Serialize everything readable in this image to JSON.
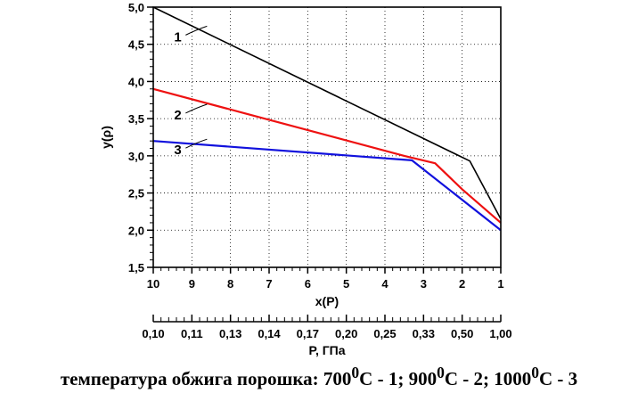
{
  "chart_data": {
    "type": "line",
    "ylabel": "y(ρ)",
    "ylim": [
      1.5,
      5.0
    ],
    "yticks": [
      1.5,
      2.0,
      2.5,
      3.0,
      3.5,
      4.0,
      4.5,
      5.0
    ],
    "ytick_labels": [
      "1,5",
      "2,0",
      "2,5",
      "3,0",
      "3,5",
      "4,0",
      "4,5",
      "5,0"
    ],
    "xlabel": "x(P)",
    "xlim": [
      10,
      1
    ],
    "xticks": [
      10,
      9,
      8,
      7,
      6,
      5,
      4,
      3,
      2,
      1
    ],
    "xtick_labels": [
      "10",
      "9",
      "8",
      "7",
      "6",
      "5",
      "4",
      "3",
      "2",
      "1"
    ],
    "x2label": "P, ГПа",
    "x2tick_labels": [
      "0,10",
      "0,11",
      "0,13",
      "0,14",
      "0,17",
      "0,20",
      "0,25",
      "0,33",
      "0,50",
      "1,00"
    ],
    "grid": true,
    "series": [
      {
        "name": "1",
        "color": "#000000",
        "x": [
          10,
          1.8,
          1
        ],
        "y": [
          5.0,
          2.93,
          2.15
        ]
      },
      {
        "name": "2",
        "color": "#ee1111",
        "x": [
          10,
          3.5,
          2.7,
          2.0,
          1
        ],
        "y": [
          3.9,
          3.0,
          2.9,
          2.55,
          2.1
        ]
      },
      {
        "name": "3",
        "color": "#1111dd",
        "x": [
          10,
          3.3,
          1
        ],
        "y": [
          3.2,
          2.94,
          2.0
        ]
      }
    ],
    "curve_labels": [
      {
        "text": "1",
        "x": 8.7,
        "y": 4.6
      },
      {
        "text": "2",
        "x": 8.7,
        "y": 3.55
      },
      {
        "text": "3",
        "x": 8.7,
        "y": 3.08
      }
    ]
  },
  "caption": {
    "prefix": "температура обжига порошка: ",
    "items": [
      {
        "temp": "700",
        "sup": "0",
        "rest": "C - 1; "
      },
      {
        "temp": "900",
        "sup": "0",
        "rest": "C - 2; "
      },
      {
        "temp": "1000",
        "sup": "0",
        "rest": "C - 3"
      }
    ]
  }
}
